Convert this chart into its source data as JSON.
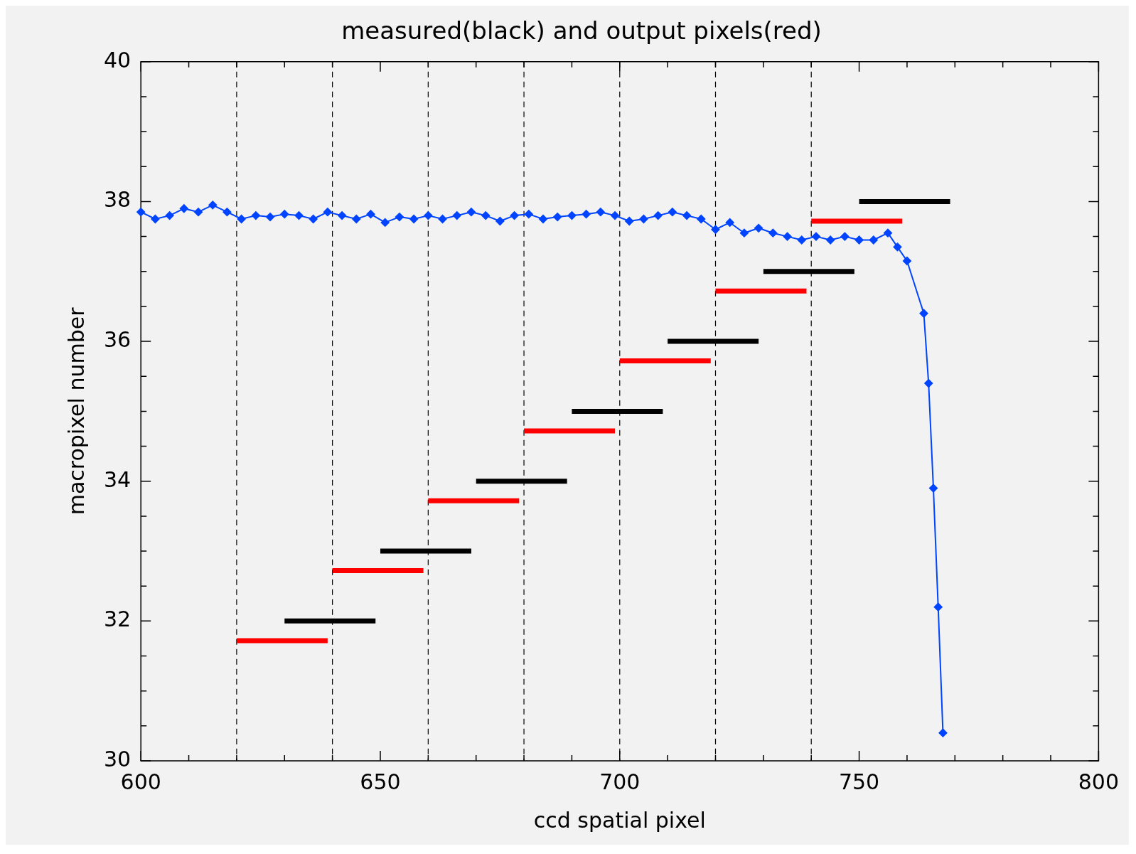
{
  "chart_data": {
    "type": "line",
    "title": "measured(black) and output pixels(red)",
    "xlabel": "ccd spatial pixel",
    "ylabel": "macropixel number",
    "xlim": [
      600,
      800
    ],
    "ylim": [
      30,
      40
    ],
    "xticks": [
      600,
      {
        "value": 610,
        "label": null
      },
      {
        "value": 620,
        "label": null
      },
      {
        "value": 630,
        "label": null
      },
      {
        "value": 640,
        "label": null
      },
      650,
      {
        "value": 660,
        "label": null
      },
      {
        "value": 670,
        "label": null
      },
      {
        "value": 680,
        "label": null
      },
      {
        "value": 690,
        "label": null
      },
      700,
      {
        "value": 710,
        "label": null
      },
      {
        "value": 720,
        "label": null
      },
      {
        "value": 730,
        "label": null
      },
      {
        "value": 740,
        "label": null
      },
      750,
      {
        "value": 760,
        "label": null
      },
      {
        "value": 770,
        "label": null
      },
      {
        "value": 780,
        "label": null
      },
      {
        "value": 790,
        "label": null
      },
      800
    ],
    "yticks": [
      30,
      {
        "value": 30.5,
        "label": null
      },
      {
        "value": 31,
        "label": null
      },
      {
        "value": 31.5,
        "label": null
      },
      32,
      {
        "value": 32.5,
        "label": null
      },
      {
        "value": 33,
        "label": null
      },
      {
        "value": 33.5,
        "label": null
      },
      34,
      {
        "value": 34.5,
        "label": null
      },
      {
        "value": 35,
        "label": null
      },
      {
        "value": 35.5,
        "label": null
      },
      36,
      {
        "value": 36.5,
        "label": null
      },
      {
        "value": 37,
        "label": null
      },
      {
        "value": 37.5,
        "label": null
      },
      38,
      {
        "value": 38.5,
        "label": null
      },
      {
        "value": 39,
        "label": null
      },
      {
        "value": 39.5,
        "label": null
      },
      40
    ],
    "grid": false,
    "legend": false,
    "marker": "diamond",
    "ref_lines": [
      {
        "axis": "x",
        "value": 620,
        "color": "#000000",
        "line_style": "dashed"
      },
      {
        "axis": "x",
        "value": 640,
        "color": "#000000",
        "line_style": "dashed"
      },
      {
        "axis": "x",
        "value": 660,
        "color": "#000000",
        "line_style": "dashed"
      },
      {
        "axis": "x",
        "value": 680,
        "color": "#000000",
        "line_style": "dashed"
      },
      {
        "axis": "x",
        "value": 700,
        "color": "#000000",
        "line_style": "dashed"
      },
      {
        "axis": "x",
        "value": 720,
        "color": "#000000",
        "line_style": "dashed"
      },
      {
        "axis": "x",
        "value": 740,
        "color": "#000000",
        "line_style": "dashed"
      }
    ],
    "series": [
      {
        "color": "#0044ff",
        "x": [
          600,
          603,
          606,
          609,
          612,
          615,
          618,
          621,
          624,
          627,
          630,
          633,
          636,
          639,
          642,
          645,
          648,
          651,
          654,
          657,
          660,
          663,
          666,
          669,
          672,
          675,
          678,
          681,
          684,
          687,
          690,
          693,
          696,
          699,
          702,
          705,
          708,
          711,
          714,
          717,
          720,
          723,
          726,
          729,
          732,
          735,
          738,
          741,
          744,
          747,
          750,
          753,
          756,
          758,
          760,
          763.5,
          764.5,
          765.5,
          766.5,
          767.5
        ],
        "values": [
          37.85,
          37.75,
          37.8,
          37.9,
          37.85,
          37.95,
          37.85,
          37.75,
          37.8,
          37.78,
          37.82,
          37.8,
          37.75,
          37.85,
          37.8,
          37.75,
          37.82,
          37.7,
          37.78,
          37.75,
          37.8,
          37.75,
          37.8,
          37.85,
          37.8,
          37.72,
          37.8,
          37.82,
          37.75,
          37.78,
          37.8,
          37.82,
          37.85,
          37.8,
          37.72,
          37.75,
          37.8,
          37.85,
          37.8,
          37.75,
          37.6,
          37.7,
          37.55,
          37.62,
          37.55,
          37.5,
          37.45,
          37.5,
          37.45,
          37.5,
          37.45,
          37.45,
          37.55,
          37.35,
          37.15,
          36.4,
          35.4,
          33.9,
          32.2,
          30.4
        ]
      },
      {
        "color": "#ff0000",
        "marker": "none",
        "x": [
          620,
          639
        ],
        "values": [
          31.72,
          31.72
        ]
      },
      {
        "color": "#000000",
        "marker": "none",
        "x": [
          630,
          649
        ],
        "values": [
          32,
          32
        ]
      },
      {
        "color": "#ff0000",
        "marker": "none",
        "x": [
          640,
          659
        ],
        "values": [
          32.72,
          32.72
        ]
      },
      {
        "color": "#000000",
        "marker": "none",
        "x": [
          650,
          669
        ],
        "values": [
          33,
          33
        ]
      },
      {
        "color": "#ff0000",
        "marker": "none",
        "x": [
          660,
          679
        ],
        "values": [
          33.72,
          33.72
        ]
      },
      {
        "color": "#000000",
        "marker": "none",
        "x": [
          670,
          689
        ],
        "values": [
          34,
          34
        ]
      },
      {
        "color": "#ff0000",
        "marker": "none",
        "x": [
          680,
          699
        ],
        "values": [
          34.72,
          34.72
        ]
      },
      {
        "color": "#000000",
        "marker": "none",
        "x": [
          690,
          709
        ],
        "values": [
          35,
          35
        ]
      },
      {
        "color": "#ff0000",
        "marker": "none",
        "x": [
          700,
          719
        ],
        "values": [
          35.72,
          35.72
        ]
      },
      {
        "color": "#000000",
        "marker": "none",
        "x": [
          710,
          729
        ],
        "values": [
          36,
          36
        ]
      },
      {
        "color": "#ff0000",
        "marker": "none",
        "x": [
          720,
          739
        ],
        "values": [
          36.72,
          36.72
        ]
      },
      {
        "color": "#000000",
        "marker": "none",
        "x": [
          730,
          749
        ],
        "values": [
          37,
          37
        ]
      },
      {
        "color": "#ff0000",
        "marker": "none",
        "x": [
          740,
          759
        ],
        "values": [
          37.72,
          37.72
        ]
      },
      {
        "color": "#000000",
        "marker": "none",
        "x": [
          750,
          769
        ],
        "values": [
          38,
          38
        ]
      }
    ]
  }
}
